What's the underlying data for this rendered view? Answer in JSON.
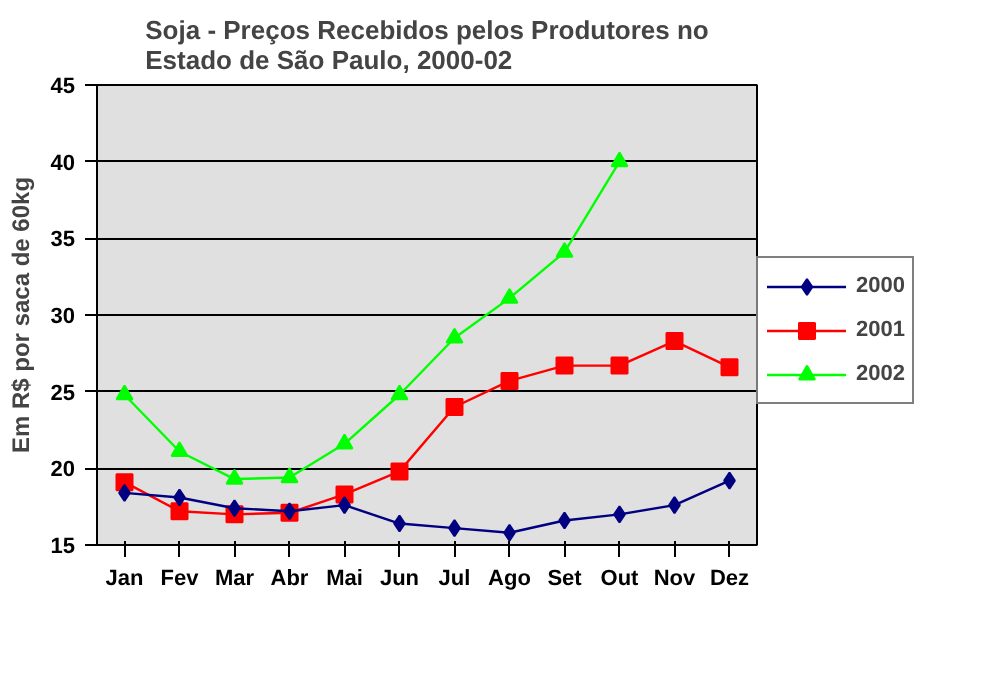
{
  "chart_data": {
    "type": "line",
    "title": "Soja - Preços Recebidos pelos Produtores no\nEstado de São Paulo, 2000-02",
    "ylabel": "Em R$ por saca de 60kg",
    "categories": [
      "Jan",
      "Fev",
      "Mar",
      "Abr",
      "Mai",
      "Jun",
      "Jul",
      "Ago",
      "Set",
      "Out",
      "Nov",
      "Dez"
    ],
    "series": [
      {
        "name": "2000",
        "color": "#000080",
        "marker": "diamond",
        "values": [
          18.4,
          18.1,
          17.4,
          17.2,
          17.6,
          16.4,
          16.1,
          15.8,
          16.6,
          17.0,
          17.6,
          19.2
        ]
      },
      {
        "name": "2001",
        "color": "#ff0000",
        "marker": "square",
        "values": [
          19.1,
          17.2,
          17.0,
          17.1,
          18.3,
          19.8,
          24.0,
          25.7,
          26.7,
          26.7,
          28.3,
          26.6
        ]
      },
      {
        "name": "2002",
        "color": "#00ff00",
        "marker": "triangle",
        "values": [
          24.8,
          21.1,
          19.3,
          19.4,
          21.6,
          24.8,
          28.5,
          31.1,
          34.1,
          40.0,
          null,
          null
        ]
      }
    ],
    "ylim": [
      15,
      45
    ],
    "yticks": [
      15,
      20,
      25,
      30,
      35,
      40,
      45
    ],
    "grid": "y",
    "legend": "right"
  }
}
